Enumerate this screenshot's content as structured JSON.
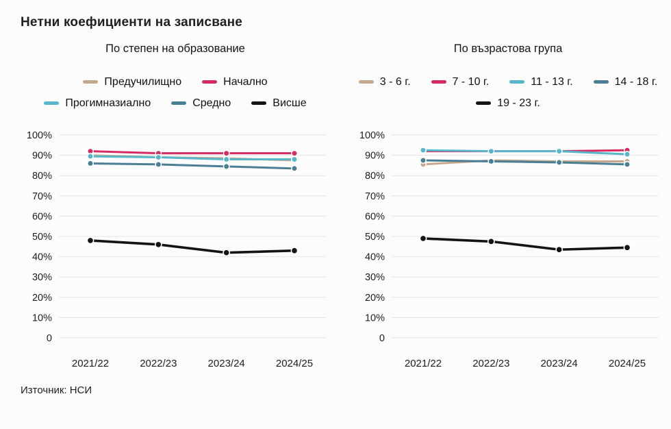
{
  "page": {
    "title": "Нетни коефициенти на записване",
    "source": "Източник: НСИ"
  },
  "colors": {
    "background": "#fcfcfc",
    "grid": "#e3e3e3",
    "text": "#1d1d1d",
    "tan": "#c6a88d",
    "pink": "#d62b5f",
    "cyan": "#57b6c9",
    "steel": "#4a7e94",
    "black": "#141414"
  },
  "chart_data": [
    {
      "type": "line",
      "title": "По степен на образование",
      "categories": [
        "2021/22",
        "2022/23",
        "2023/24",
        "2024/25"
      ],
      "ylim": [
        0,
        100
      ],
      "grid": true,
      "legend_position": "top",
      "legend_rows": [
        [
          0,
          1
        ],
        [
          2,
          3,
          4
        ]
      ],
      "yticks": [
        {
          "v": 100,
          "label": "100%"
        },
        {
          "v": 90,
          "label": "90%"
        },
        {
          "v": 80,
          "label": "80%"
        },
        {
          "v": 70,
          "label": "70%"
        },
        {
          "v": 60,
          "label": "60%"
        },
        {
          "v": 50,
          "label": "50%"
        },
        {
          "v": 40,
          "label": "40%"
        },
        {
          "v": 30,
          "label": "30%"
        },
        {
          "v": 20,
          "label": "20%"
        },
        {
          "v": 10,
          "label": "10%"
        },
        {
          "v": 0,
          "label": "0"
        }
      ],
      "series": [
        {
          "name": "Предучилищно",
          "color": "#c6a88d",
          "values": [
            90,
            89,
            88.5,
            87.5
          ]
        },
        {
          "name": "Начално",
          "color": "#d62b5f",
          "values": [
            92,
            91,
            91,
            91
          ]
        },
        {
          "name": "Прогимназиално",
          "color": "#57b6c9",
          "values": [
            89.5,
            89,
            88,
            88
          ]
        },
        {
          "name": "Средно",
          "color": "#4a7e94",
          "values": [
            86,
            85.5,
            84.5,
            83.5
          ]
        },
        {
          "name": "Висше",
          "color": "#141414",
          "values": [
            48,
            46,
            42,
            43
          ]
        }
      ]
    },
    {
      "type": "line",
      "title": "По възрастова група",
      "categories": [
        "2021/22",
        "2022/23",
        "2023/24",
        "2024/25"
      ],
      "ylim": [
        0,
        100
      ],
      "grid": true,
      "legend_position": "top",
      "legend_rows": [
        [
          0,
          1,
          2,
          3
        ],
        [
          4
        ]
      ],
      "yticks": [
        {
          "v": 100,
          "label": "100%"
        },
        {
          "v": 90,
          "label": "90%"
        },
        {
          "v": 80,
          "label": "80%"
        },
        {
          "v": 70,
          "label": "70%"
        },
        {
          "v": 60,
          "label": "60%"
        },
        {
          "v": 50,
          "label": "50%"
        },
        {
          "v": 40,
          "label": "40%"
        },
        {
          "v": 30,
          "label": "30%"
        },
        {
          "v": 20,
          "label": "20%"
        },
        {
          "v": 10,
          "label": "10%"
        },
        {
          "v": 0,
          "label": "0"
        }
      ],
      "series": [
        {
          "name": "3 - 6 г.",
          "color": "#c6a88d",
          "values": [
            85.5,
            87.5,
            87,
            87
          ]
        },
        {
          "name": "7 - 10 г.",
          "color": "#d62b5f",
          "values": [
            92,
            92,
            92,
            92.5
          ]
        },
        {
          "name": "11 - 13 г.",
          "color": "#57b6c9",
          "values": [
            92.5,
            92,
            92,
            90.5
          ]
        },
        {
          "name": "14 - 18 г.",
          "color": "#4a7e94",
          "values": [
            87.5,
            87,
            86.5,
            85.5
          ]
        },
        {
          "name": "19 - 23 г.",
          "color": "#141414",
          "values": [
            49,
            47.5,
            43.5,
            44.5
          ]
        }
      ]
    }
  ]
}
